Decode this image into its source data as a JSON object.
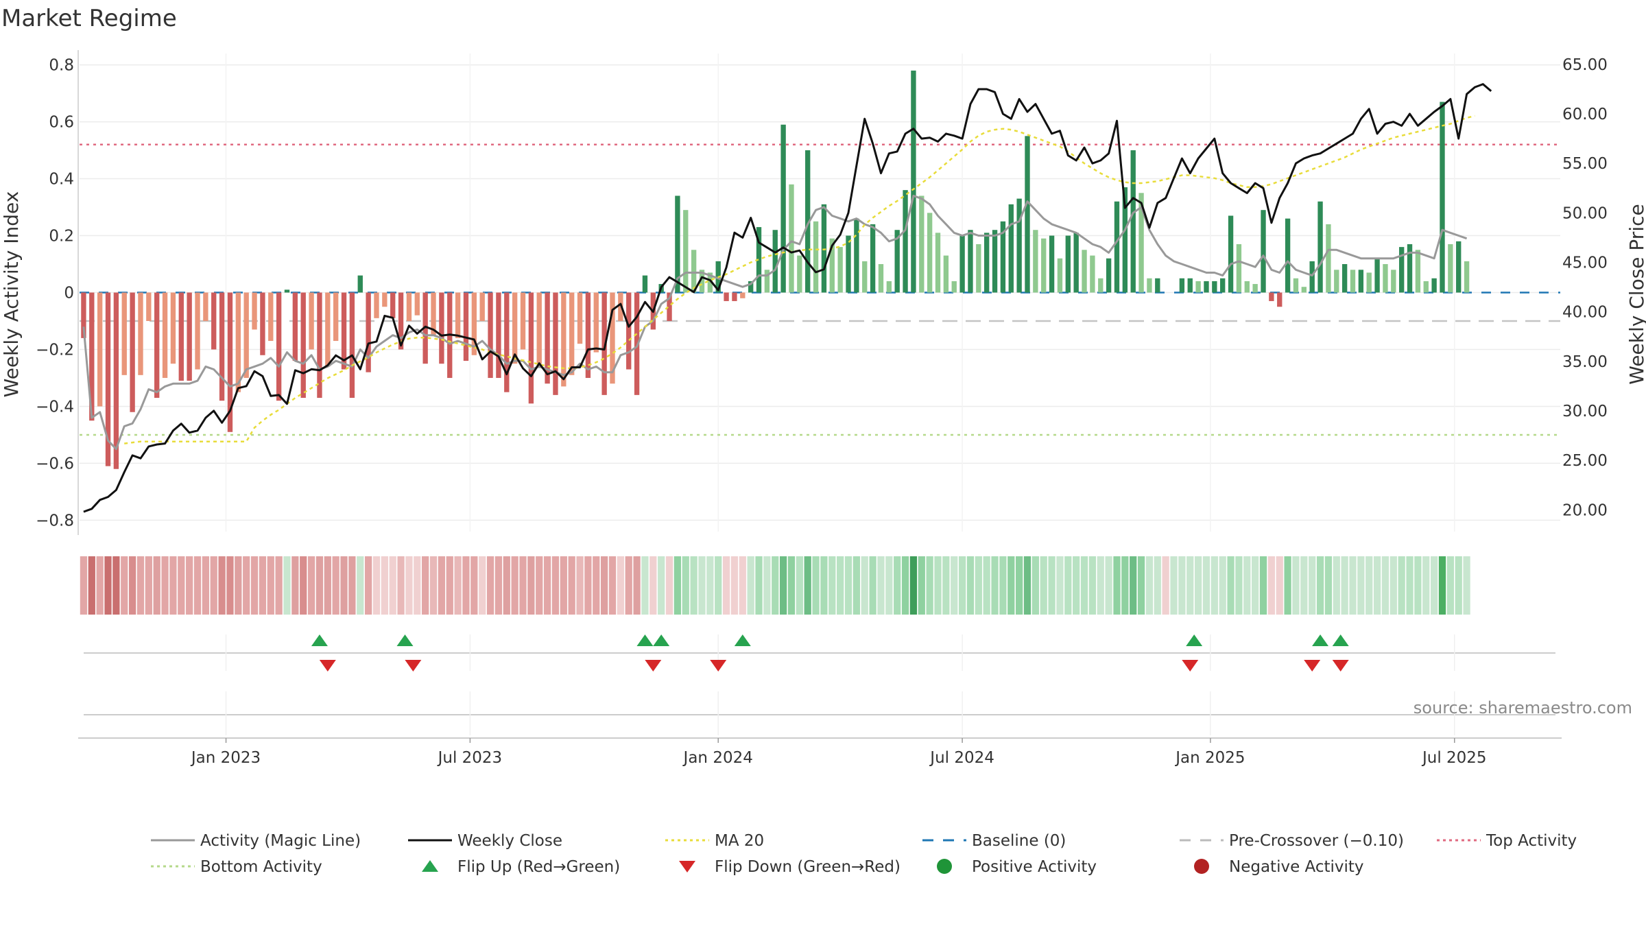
{
  "chart_data": {
    "type": "bar",
    "title": "Market Regime",
    "ylabel_left": "Weekly Activity Index",
    "ylabel_right": "Weekly Close Price",
    "y_left_ticks": [
      "0.8",
      "0.6",
      "0.4",
      "0.2",
      "0",
      "−0.2",
      "−0.4",
      "−0.6",
      "−0.8"
    ],
    "y_left_values": [
      0.8,
      0.6,
      0.4,
      0.2,
      0,
      -0.2,
      -0.4,
      -0.6,
      -0.8
    ],
    "ylim_left": [
      -0.84,
      0.84
    ],
    "y_right_ticks": [
      "65.00",
      "60.00",
      "55.00",
      "50.00",
      "45.00",
      "40.00",
      "35.00",
      "30.00",
      "25.00",
      "20.00"
    ],
    "y_right_values": [
      65,
      60,
      55,
      50,
      45,
      40,
      35,
      30,
      25,
      20
    ],
    "ylim_right": [
      17.8,
      66.1
    ],
    "x_ticks": [
      "Jan 2023",
      "Jul 2023",
      "Jan 2024",
      "Jul 2024",
      "Jan 2025",
      "Jul 2025"
    ],
    "x_tick_weeks": [
      17.5,
      47.5,
      78,
      108,
      138.5,
      168.5
    ],
    "week_count": 182,
    "reference_lines": {
      "top_activity": 0.52,
      "bottom_activity": -0.5,
      "baseline": 0,
      "pre_crossover": -0.1
    },
    "activity_index": [
      -0.16,
      -0.45,
      -0.4,
      -0.61,
      -0.62,
      -0.29,
      -0.42,
      -0.29,
      -0.1,
      -0.37,
      -0.3,
      -0.25,
      -0.31,
      -0.31,
      -0.27,
      -0.1,
      -0.2,
      -0.38,
      -0.49,
      -0.35,
      -0.3,
      -0.13,
      -0.22,
      -0.17,
      -0.38,
      0.01,
      -0.24,
      -0.37,
      -0.2,
      -0.37,
      -0.26,
      -0.17,
      -0.27,
      -0.37,
      0.06,
      -0.28,
      -0.09,
      -0.05,
      -0.09,
      -0.2,
      -0.1,
      -0.08,
      -0.25,
      -0.15,
      -0.25,
      -0.3,
      -0.16,
      -0.24,
      -0.22,
      -0.1,
      -0.3,
      -0.3,
      -0.35,
      -0.25,
      -0.2,
      -0.39,
      -0.25,
      -0.32,
      -0.36,
      -0.33,
      -0.29,
      -0.18,
      -0.3,
      -0.21,
      -0.36,
      -0.32,
      -0.1,
      -0.27,
      -0.36,
      0.06,
      -0.13,
      0.03,
      -0.1,
      0.34,
      0.29,
      0.15,
      0.08,
      0.07,
      0.11,
      -0.03,
      -0.03,
      -0.02,
      0.04,
      0.23,
      0.08,
      0.22,
      0.59,
      0.38,
      0.13,
      0.5,
      0.25,
      0.31,
      0.19,
      0.16,
      0.2,
      0.26,
      0.11,
      0.24,
      0.1,
      0.04,
      0.22,
      0.36,
      0.78,
      0.34,
      0.28,
      0.21,
      0.13,
      0.04,
      0.2,
      0.22,
      0.17,
      0.21,
      0.22,
      0.25,
      0.31,
      0.33,
      0.55,
      0.22,
      0.19,
      0.2,
      0.12,
      0.2,
      0.21,
      0.15,
      0.13,
      0.05,
      0.12,
      0.32,
      0.37,
      0.5,
      0.35,
      0.05,
      0.05,
      0.0,
      0.0,
      0.05,
      0.05,
      0.04,
      0.04,
      0.04,
      0.05,
      0.27,
      0.17,
      0.04,
      0.03,
      0.29,
      -0.03,
      -0.05,
      0.26,
      0.05,
      0.02,
      0.11,
      0.32,
      0.24,
      0.08,
      0.1,
      0.08,
      0.08,
      0.07,
      0.12,
      0.1,
      0.08,
      0.16,
      0.17,
      0.15,
      0.04,
      0.05,
      0.67,
      0.17,
      0.18,
      0.11
    ],
    "magic_line": [
      -0.12,
      -0.44,
      -0.42,
      -0.52,
      -0.55,
      -0.47,
      -0.46,
      -0.41,
      -0.34,
      -0.35,
      -0.33,
      -0.32,
      -0.32,
      -0.32,
      -0.31,
      -0.26,
      -0.27,
      -0.3,
      -0.33,
      -0.32,
      -0.27,
      -0.26,
      -0.25,
      -0.23,
      -0.26,
      -0.21,
      -0.24,
      -0.25,
      -0.22,
      -0.27,
      -0.26,
      -0.24,
      -0.25,
      -0.26,
      -0.2,
      -0.23,
      -0.19,
      -0.17,
      -0.15,
      -0.16,
      -0.14,
      -0.13,
      -0.15,
      -0.15,
      -0.16,
      -0.18,
      -0.17,
      -0.18,
      -0.19,
      -0.17,
      -0.2,
      -0.22,
      -0.25,
      -0.24,
      -0.24,
      -0.27,
      -0.26,
      -0.27,
      -0.28,
      -0.29,
      -0.28,
      -0.25,
      -0.27,
      -0.26,
      -0.28,
      -0.28,
      -0.22,
      -0.21,
      -0.19,
      -0.12,
      -0.1,
      -0.04,
      -0.02,
      0.05,
      0.07,
      0.07,
      0.07,
      0.06,
      0.05,
      0.04,
      0.03,
      0.02,
      0.03,
      0.06,
      0.06,
      0.08,
      0.15,
      0.18,
      0.17,
      0.24,
      0.29,
      0.3,
      0.27,
      0.26,
      0.25,
      0.26,
      0.24,
      0.23,
      0.21,
      0.18,
      0.19,
      0.22,
      0.34,
      0.33,
      0.31,
      0.27,
      0.24,
      0.21,
      0.2,
      0.21,
      0.2,
      0.2,
      0.2,
      0.21,
      0.24,
      0.25,
      0.32,
      0.29,
      0.26,
      0.24,
      0.23,
      0.22,
      0.21,
      0.19,
      0.17,
      0.16,
      0.14,
      0.18,
      0.22,
      0.28,
      0.3,
      0.22,
      0.17,
      0.13,
      0.11,
      0.1,
      0.09,
      0.08,
      0.07,
      0.07,
      0.06,
      0.1,
      0.11,
      0.1,
      0.09,
      0.13,
      0.08,
      0.07,
      0.11,
      0.08,
      0.07,
      0.06,
      0.1,
      0.15,
      0.15,
      0.14,
      0.13,
      0.12,
      0.12,
      0.12,
      0.12,
      0.12,
      0.13,
      0.14,
      0.14,
      0.13,
      0.12,
      0.22,
      0.21,
      0.2,
      0.19
    ],
    "weekly_close": [
      19.8,
      20.1,
      21.0,
      21.3,
      22.0,
      23.8,
      25.5,
      25.2,
      26.4,
      26.6,
      26.7,
      28.0,
      28.7,
      27.8,
      28.0,
      29.3,
      30.0,
      28.8,
      30.0,
      32.3,
      32.5,
      34.0,
      33.5,
      31.5,
      31.6,
      30.7,
      34.1,
      33.8,
      34.2,
      34.1,
      34.6,
      35.6,
      35.1,
      35.6,
      34.2,
      36.8,
      37.0,
      39.6,
      39.4,
      36.6,
      38.6,
      37.8,
      38.5,
      38.2,
      37.6,
      37.7,
      37.6,
      37.4,
      37.2,
      35.2,
      36.0,
      35.5,
      33.7,
      35.7,
      34.3,
      33.5,
      34.8,
      33.7,
      34.0,
      33.2,
      34.4,
      34.4,
      36.2,
      36.3,
      36.2,
      40.2,
      40.8,
      38.5,
      39.5,
      41.0,
      40.0,
      42.5,
      43.5,
      43.0,
      42.5,
      42.0,
      43.5,
      43.2,
      42.2,
      44.5,
      48.0,
      47.5,
      49.5,
      47.0,
      46.5,
      46.0,
      46.5,
      46.0,
      46.2,
      45.0,
      44.0,
      44.3,
      46.7,
      47.8,
      50.0,
      54.8,
      59.5,
      57.0,
      54.0,
      56.0,
      56.2,
      58.0,
      58.5,
      57.5,
      57.6,
      57.2,
      58.0,
      57.8,
      57.5,
      61.0,
      62.5,
      62.5,
      62.2,
      60.0,
      59.5,
      61.5,
      60.2,
      61.0,
      59.5,
      58.0,
      58.3,
      55.8,
      55.3,
      56.6,
      55.0,
      55.3,
      56.0,
      59.3,
      50.5,
      51.5,
      51.0,
      48.5,
      51.0,
      51.5,
      53.5,
      55.5,
      54.0,
      55.5,
      56.5,
      57.5,
      54.0,
      53.0,
      52.5,
      52.0,
      53.0,
      52.5,
      49.0,
      51.5,
      53.0,
      55.0,
      55.5,
      55.8,
      56.0,
      56.5,
      57.0,
      57.5,
      58.0,
      59.5,
      60.5,
      58.0,
      59.0,
      59.2,
      58.8,
      60.0,
      58.8,
      59.5,
      60.2,
      60.8,
      61.5,
      57.5,
      62.0,
      62.7,
      63.0,
      62.3
    ],
    "ma20": [
      null,
      null,
      null,
      null,
      null,
      26.7,
      26.8,
      26.9,
      26.9,
      26.9,
      26.9,
      26.9,
      26.9,
      26.9,
      26.9,
      26.9,
      26.9,
      26.9,
      26.9,
      26.9,
      26.9,
      28.3,
      29.0,
      29.6,
      30.1,
      30.7,
      31.3,
      31.8,
      32.3,
      32.8,
      33.3,
      33.7,
      34.1,
      34.6,
      35.0,
      35.4,
      35.9,
      36.3,
      36.7,
      37.0,
      37.3,
      37.4,
      37.4,
      37.3,
      37.2,
      37.0,
      36.8,
      36.6,
      36.4,
      36.2,
      35.9,
      35.7,
      35.5,
      35.3,
      35.1,
      34.9,
      34.7,
      34.5,
      34.4,
      34.3,
      34.3,
      34.4,
      34.6,
      34.9,
      35.3,
      35.8,
      36.4,
      37.1,
      37.8,
      38.5,
      39.2,
      39.9,
      40.6,
      41.3,
      41.9,
      42.4,
      42.8,
      43.2,
      43.5,
      43.8,
      44.2,
      44.6,
      45.0,
      45.3,
      45.6,
      45.8,
      46.0,
      46.1,
      46.2,
      46.3,
      46.3,
      46.3,
      46.4,
      46.6,
      47.0,
      47.8,
      48.8,
      49.5,
      50.1,
      50.7,
      51.2,
      51.8,
      52.4,
      53.0,
      53.6,
      54.3,
      55.0,
      55.7,
      56.4,
      57.2,
      57.8,
      58.2,
      58.4,
      58.5,
      58.4,
      58.2,
      57.9,
      57.6,
      57.3,
      57.0,
      56.7,
      56.2,
      55.6,
      55.0,
      54.5,
      54.0,
      53.6,
      53.3,
      53.1,
      53.0,
      53.0,
      53.1,
      53.2,
      53.4,
      53.6,
      53.8,
      53.8,
      53.7,
      53.6,
      53.5,
      53.3,
      53.0,
      52.8,
      52.6,
      52.6,
      52.7,
      52.9,
      53.2,
      53.5,
      53.8,
      54.1,
      54.4,
      54.7,
      55.0,
      55.3,
      55.6,
      56.0,
      56.4,
      56.7,
      57.0,
      57.3,
      57.6,
      57.8,
      58.0,
      58.2,
      58.4,
      58.6,
      58.8,
      59.0,
      59.3,
      59.6,
      59.8
    ],
    "regime_strip": [
      "#e2a6a6",
      "#c96f6f",
      "#e2a6a6",
      "#c96f6f",
      "#c96f6f",
      "#e2a6a6",
      "#d88d8d",
      "#e2a6a6",
      "#e2a6a6",
      "#dea0a0",
      "#e2a6a6",
      "#e2a6a6",
      "#e2a6a6",
      "#e2a6a6",
      "#e2a6a6",
      "#e2a6a6",
      "#e2a6a6",
      "#d88d8d",
      "#d88d8d",
      "#dea0a0",
      "#e2a6a6",
      "#e2a6a6",
      "#e2a6a6",
      "#e2a6a6",
      "#e2a6a6",
      "#c8e6cf",
      "#dea0a0",
      "#d88d8d",
      "#e2a6a6",
      "#dea0a0",
      "#dea0a0",
      "#e2a6a6",
      "#dea0a0",
      "#dea0a0",
      "#c8e6cf",
      "#e2a6a6",
      "#f0d0d0",
      "#f0d0d0",
      "#f0d0d0",
      "#e8b8b8",
      "#f0d0d0",
      "#f0d0d0",
      "#e2a6a6",
      "#e8b8b8",
      "#e2a6a6",
      "#e2a6a6",
      "#e8b8b8",
      "#e2a6a6",
      "#e2a6a6",
      "#f0d0d0",
      "#e2a6a6",
      "#e2a6a6",
      "#dea0a0",
      "#e2a6a6",
      "#e2a6a6",
      "#dea0a0",
      "#e2a6a6",
      "#e2a6a6",
      "#e2a6a6",
      "#e2a6a6",
      "#e2a6a6",
      "#e8b8b8",
      "#e2a6a6",
      "#e2a6a6",
      "#dea0a0",
      "#e2a6a6",
      "#f0d0d0",
      "#e2a6a6",
      "#dea0a0",
      "#c8e6cf",
      "#f0d0d0",
      "#c8e6cf",
      "#f0d0d0",
      "#8fd1a0",
      "#a8dcb5",
      "#b8e2c2",
      "#c8e6cf",
      "#c8e6cf",
      "#b8e2c2",
      "#f0d0d0",
      "#f0d0d0",
      "#f0d0d0",
      "#c8e6cf",
      "#a8dcb5",
      "#c8e6cf",
      "#a8dcb5",
      "#6dbd85",
      "#8fd1a0",
      "#b8e2c2",
      "#6dbd85",
      "#a8dcb5",
      "#a8dcb5",
      "#b8e2c2",
      "#b8e2c2",
      "#b8e2c2",
      "#a8dcb5",
      "#c8e6cf",
      "#a8dcb5",
      "#c8e6cf",
      "#c8e6cf",
      "#a8dcb5",
      "#8fd1a0",
      "#3f9e5a",
      "#8fd1a0",
      "#a8dcb5",
      "#b8e2c2",
      "#b8e2c2",
      "#c8e6cf",
      "#b8e2c2",
      "#a8dcb5",
      "#b8e2c2",
      "#b8e2c2",
      "#a8dcb5",
      "#a8dcb5",
      "#8fd1a0",
      "#8fd1a0",
      "#6dbd85",
      "#a8dcb5",
      "#b8e2c2",
      "#b8e2c2",
      "#c8e6cf",
      "#b8e2c2",
      "#b8e2c2",
      "#b8e2c2",
      "#b8e2c2",
      "#c8e6cf",
      "#c8e6cf",
      "#8fd1a0",
      "#8fd1a0",
      "#6dbd85",
      "#8fd1a0",
      "#c8e6cf",
      "#c8e6cf",
      "#f0d0d0",
      "#c8e6cf",
      "#c8e6cf",
      "#c8e6cf",
      "#c8e6cf",
      "#c8e6cf",
      "#c8e6cf",
      "#c8e6cf",
      "#a8dcb5",
      "#b8e2c2",
      "#c8e6cf",
      "#c8e6cf",
      "#8fd1a0",
      "#f0d0d0",
      "#f0d0d0",
      "#8fd1a0",
      "#c8e6cf",
      "#c8e6cf",
      "#c8e6cf",
      "#a8dcb5",
      "#a8dcb5",
      "#c8e6cf",
      "#c8e6cf",
      "#c8e6cf",
      "#c8e6cf",
      "#c8e6cf",
      "#c8e6cf",
      "#c8e6cf",
      "#c8e6cf",
      "#b8e2c2",
      "#b8e2c2",
      "#b8e2c2",
      "#c8e6cf",
      "#c8e6cf",
      "#4caf63",
      "#b8e2c2",
      "#b8e2c2",
      "#c8e6cf"
    ],
    "flip_up_weeks": [
      29,
      39.5,
      69,
      71,
      81,
      136.5,
      152,
      154.5
    ],
    "flip_down_weeks": [
      30,
      40.5,
      70,
      78,
      136,
      151,
      154.5
    ],
    "source": "source: sharemaestro.com",
    "legend": [
      {
        "label": "Activity (Magic Line)",
        "kind": "line",
        "color": "#999999"
      },
      {
        "label": "Weekly Close",
        "kind": "line",
        "color": "#111111"
      },
      {
        "label": "MA 20",
        "kind": "dotted",
        "color": "#e8dc3a"
      },
      {
        "label": "Baseline (0)",
        "kind": "dashed",
        "color": "#1f77b4"
      },
      {
        "label": "Pre-Crossover (−0.10)",
        "kind": "dashed",
        "color": "#bbbbbb"
      },
      {
        "label": "Top Activity",
        "kind": "dotted",
        "color": "#e06a80"
      },
      {
        "label": "Bottom Activity",
        "kind": "dotted",
        "color": "#b5d98a"
      },
      {
        "label": "Flip Up (Red→Green)",
        "kind": "triangle-up",
        "color": "#27a34f"
      },
      {
        "label": "Flip Down (Green→Red)",
        "kind": "triangle-down",
        "color": "#d62728"
      },
      {
        "label": "Positive Activity",
        "kind": "circle",
        "color": "#1f9438"
      },
      {
        "label": "Negative Activity",
        "kind": "circle",
        "color": "#b22222"
      }
    ],
    "colors": {
      "positive_strong": "#2e8b57",
      "positive_light": "#8fc98f",
      "negative_strong": "#cd5c5c",
      "negative_light": "#e9967a",
      "grid": "#ececec"
    }
  }
}
